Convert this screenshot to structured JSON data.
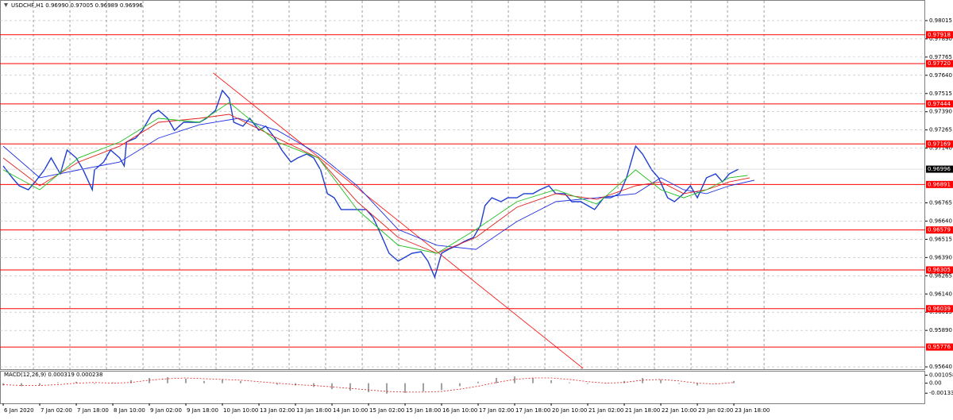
{
  "chart_data": [
    {
      "type": "line",
      "title": "USDCHF,H1  0.96990 0.97005 0.96989 0.96996",
      "xlim": [
        -1.4,
        403.8
      ],
      "ylim": [
        0.95624,
        0.98151
      ],
      "grid": true,
      "xticks": [
        {
          "value": 0,
          "label": "6 Jan 2020"
        },
        {
          "value": 16,
          "label": "7 Jan 02:00"
        },
        {
          "value": 32,
          "label": "7 Jan 18:00"
        },
        {
          "value": 48,
          "label": "8 Jan 10:00"
        },
        {
          "value": 64,
          "label": "9 Jan 02:00"
        },
        {
          "value": 80,
          "label": "9 Jan 18:00"
        },
        {
          "value": 96,
          "label": "10 Jan 10:00"
        },
        {
          "value": 112,
          "label": "13 Jan 02:00"
        },
        {
          "value": 128,
          "label": "13 Jan 18:00"
        },
        {
          "value": 144,
          "label": "14 Jan 10:00"
        },
        {
          "value": 160,
          "label": "15 Jan 02:00"
        },
        {
          "value": 176,
          "label": "15 Jan 18:00"
        },
        {
          "value": 192,
          "label": "16 Jan 10:00"
        },
        {
          "value": 208,
          "label": "17 Jan 02:00"
        },
        {
          "value": 224,
          "label": "17 Jan 18:00"
        },
        {
          "value": 240,
          "label": "20 Jan 10:00"
        },
        {
          "value": 256,
          "label": "21 Jan 02:00"
        },
        {
          "value": 272,
          "label": "21 Jan 18:00"
        },
        {
          "value": 288,
          "label": "22 Jan 10:00"
        },
        {
          "value": 304,
          "label": "23 Jan 02:00"
        },
        {
          "value": 320,
          "label": "23 Jan 18:00"
        }
      ],
      "yticks": [
        0.98015,
        {
          "value": 0.9789,
          "label": "0.97890"
        },
        0.97765,
        {
          "value": 0.9764,
          "label": "0.97640"
        },
        0.97515,
        {
          "value": 0.9739,
          "label": "0.97390"
        },
        0.97265,
        {
          "value": 0.9714,
          "label": "0.97140"
        },
        0.96765,
        {
          "value": 0.9664,
          "label": "0.96640"
        },
        0.96515,
        {
          "value": 0.9639,
          "label": "0.96390"
        },
        0.96265,
        {
          "value": 0.9614,
          "label": "0.96140"
        },
        0.96015,
        {
          "value": 0.9589,
          "label": "0.95890"
        },
        {
          "value": 0.9564,
          "label": "0.95640"
        }
      ],
      "levels": [
        0.97918,
        {
          "value": 0.9772,
          "label": "0.97720"
        },
        0.97444,
        0.97169,
        0.96891,
        0.96579,
        0.96305,
        0.96039,
        0.95776
      ],
      "level_color": "#ff0000",
      "current_price": 0.96996,
      "trendline": {
        "x": [
          92,
          254
        ],
        "values": [
          0.97656,
          0.95629
        ],
        "color": "#ff0000"
      },
      "series": [
        {
          "color": "#1f3fd0",
          "x": [
            0,
            4,
            7,
            11,
            14,
            18,
            21,
            25,
            28,
            32,
            35,
            39,
            40,
            44,
            47,
            51,
            53,
            54,
            58,
            61,
            65,
            68,
            72,
            75,
            79,
            82,
            86,
            89,
            93,
            96,
            99,
            101,
            105,
            108,
            112,
            115,
            119,
            122,
            126,
            129,
            133,
            136,
            139,
            142,
            145,
            148,
            152,
            155,
            159,
            162,
            166,
            169,
            173,
            176,
            179,
            183,
            186,
            189,
            192,
            195,
            199,
            202,
            206,
            209,
            211,
            214,
            218,
            221,
            225,
            228,
            232,
            235,
            239,
            242,
            246,
            249,
            253,
            256,
            259,
            263,
            266,
            270,
            273,
            277,
            280,
            284,
            287,
            291,
            294,
            298,
            301,
            304,
            308,
            312,
            315,
            318,
            322
          ],
          "values": [
            0.97018,
            0.96937,
            0.96882,
            0.96855,
            0.96909,
            0.96991,
            0.97073,
            0.96964,
            0.97127,
            0.97073,
            0.96991,
            0.96855,
            0.96991,
            0.97045,
            0.97127,
            0.97073,
            0.97018,
            0.97182,
            0.97209,
            0.97263,
            0.97372,
            0.974,
            0.97345,
            0.97263,
            0.97318,
            0.97318,
            0.97318,
            0.97345,
            0.974,
            0.97536,
            0.97481,
            0.97318,
            0.97291,
            0.97345,
            0.97263,
            0.97291,
            0.97209,
            0.97127,
            0.97045,
            0.97073,
            0.971,
            0.97073,
            0.96991,
            0.96828,
            0.968,
            0.96719,
            0.96719,
            0.96719,
            0.96719,
            0.96664,
            0.96528,
            0.96419,
            0.96365,
            0.96392,
            0.96419,
            0.9643,
            0.96365,
            0.96256,
            0.96419,
            0.96446,
            0.96474,
            0.96501,
            0.96528,
            0.9661,
            0.96746,
            0.968,
            0.96773,
            0.968,
            0.968,
            0.96828,
            0.96828,
            0.96855,
            0.96882,
            0.96828,
            0.96828,
            0.96773,
            0.96773,
            0.96746,
            0.96719,
            0.968,
            0.968,
            0.96828,
            0.96937,
            0.97154,
            0.971,
            0.96991,
            0.96937,
            0.968,
            0.96773,
            0.96828,
            0.96882,
            0.968,
            0.96937,
            0.96964,
            0.96909,
            0.96964,
            0.96996
          ]
        },
        {
          "color": "#2030e0",
          "x": [
            0,
            16,
            33,
            51,
            68,
            86,
            103,
            120,
            138,
            155,
            173,
            190,
            207,
            225,
            242,
            260,
            277,
            288,
            298,
            308,
            318,
            329
          ],
          "values": [
            0.97154,
            0.96937,
            0.96991,
            0.97045,
            0.97209,
            0.97301,
            0.97345,
            0.97263,
            0.971,
            0.96882,
            0.96582,
            0.96474,
            0.96446,
            0.96637,
            0.96773,
            0.968,
            0.96828,
            0.96937,
            0.96855,
            0.96828,
            0.96882,
            0.9692
          ]
        },
        {
          "color": "#e02020",
          "x": [
            0,
            16,
            33,
            51,
            68,
            86,
            99,
            120,
            138,
            155,
            173,
            190,
            207,
            225,
            242,
            260,
            277,
            288,
            298,
            308,
            318,
            327
          ],
          "values": [
            0.97073,
            0.96882,
            0.97045,
            0.97154,
            0.97318,
            0.97345,
            0.97372,
            0.97209,
            0.97073,
            0.96773,
            0.96528,
            0.96419,
            0.96528,
            0.96735,
            0.96828,
            0.96789,
            0.96882,
            0.96909,
            0.96828,
            0.96855,
            0.96909,
            0.96937
          ]
        },
        {
          "color": "#20c020",
          "x": [
            0,
            16,
            33,
            51,
            68,
            86,
            99,
            120,
            138,
            155,
            173,
            190,
            207,
            225,
            242,
            260,
            277,
            288,
            298,
            308,
            318,
            326
          ],
          "values": [
            0.96991,
            0.96855,
            0.97073,
            0.97182,
            0.97345,
            0.97318,
            0.97454,
            0.97182,
            0.97073,
            0.96719,
            0.96474,
            0.96419,
            0.96582,
            0.96773,
            0.96855,
            0.96757,
            0.96991,
            0.96855,
            0.968,
            0.96855,
            0.96937,
            0.96953
          ]
        }
      ]
    },
    {
      "type": "bar",
      "title": "MACD(12,26,9) 0.000319 0.000238",
      "xlim": [
        -1.4,
        403.8
      ],
      "ylim": [
        -0.00269,
        0.00155
      ],
      "yticks": [
        0.001058,
        {
          "value": 0,
          "label": "0.00"
        },
        -0.001336
      ],
      "x": [
        0,
        8,
        16,
        24,
        32,
        40,
        48,
        56,
        64,
        72,
        80,
        88,
        96,
        104,
        112,
        120,
        128,
        136,
        144,
        152,
        160,
        168,
        176,
        184,
        192,
        200,
        208,
        216,
        224,
        232,
        240,
        248,
        256,
        264,
        272,
        280,
        288,
        296,
        304,
        312,
        320
      ],
      "values": [
        -0.0003,
        -0.0004,
        -0.0003,
        0.0001,
        0.0002,
        -0.0001,
        0.0001,
        0.0004,
        0.0007,
        0.0008,
        0.0006,
        0.0003,
        0.0005,
        0.0003,
        0,
        -0.0002,
        -0.0003,
        -0.0005,
        -0.0008,
        -0.001,
        -0.0012,
        -0.0014,
        -0.0013,
        -0.0011,
        -0.0009,
        -0.0004,
        0.0002,
        0.0007,
        0.0009,
        0.0007,
        0.0004,
        0.0001,
        -0.0001,
        0,
        0.0003,
        0.0007,
        0.0005,
        -0.0001,
        -0.0003,
        0,
        0.0003
      ],
      "color": "#a0a0a0",
      "signal": {
        "color": "#e02020",
        "values": [
          -0.0002,
          -0.0003,
          -0.0003,
          -0.0002,
          0,
          0.0001,
          0,
          0.0001,
          0.0004,
          0.0006,
          0.0007,
          0.0006,
          0.0005,
          0.0004,
          0.0002,
          0,
          -0.0002,
          -0.0003,
          -0.0005,
          -0.0007,
          -0.0009,
          -0.0011,
          -0.0012,
          -0.0012,
          -0.0011,
          -0.0008,
          -0.0004,
          0.0001,
          0.0005,
          0.0007,
          0.0007,
          0.0005,
          0.0002,
          0,
          0.0001,
          0.0004,
          0.0005,
          0.0003,
          0,
          -0.0001,
          0.0001
        ]
      }
    }
  ]
}
